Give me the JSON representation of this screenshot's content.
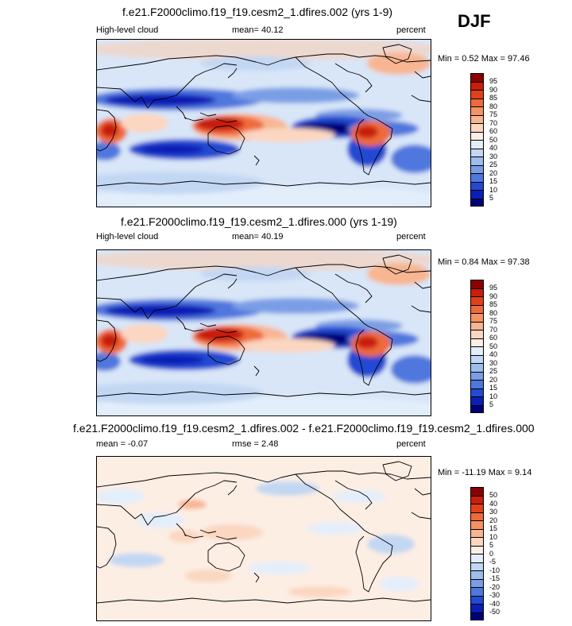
{
  "season": "DJF",
  "panels": [
    {
      "title": "f.e21.F2000climo.f19_f19.cesm2_1.dfires.002 (yrs 1-9)",
      "left_label": "High-level cloud",
      "center_label": "mean=  40.12",
      "right_label": "percent",
      "minmax": "Min =   0.52 Max =  97.46",
      "map_theme": "absolute"
    },
    {
      "title": "f.e21.F2000climo.f19_f19.cesm2_1.dfires.000 (yrs 1-19)",
      "left_label": "High-level cloud",
      "center_label": "mean=  40.19",
      "right_label": "percent",
      "minmax": "Min =   0.84 Max =  97.38",
      "map_theme": "absolute"
    },
    {
      "title": "f.e21.F2000climo.f19_f19.cesm2_1.dfires.002 - f.e21.F2000climo.f19_f19.cesm2_1.dfires.000",
      "left_label": "mean = -0.07",
      "center_label": "rmse =   2.48",
      "right_label": "percent",
      "minmax": "Min = -11.19 Max =   9.14",
      "map_theme": "difference"
    }
  ],
  "colorbars": {
    "absolute": {
      "labels": [
        "95",
        "90",
        "85",
        "80",
        "75",
        "70",
        "60",
        "50",
        "40",
        "30",
        "25",
        "20",
        "15",
        "10",
        "5"
      ],
      "colors": [
        "#8b0000",
        "#c81e0a",
        "#e0411c",
        "#ef6a3a",
        "#f59263",
        "#f8b591",
        "#fbd6c0",
        "#fdeee4",
        "#e3eefb",
        "#c2d7f3",
        "#9fbcec",
        "#7a9ee5",
        "#4f77de",
        "#2449d2",
        "#0a1fb5",
        "#00007a"
      ]
    },
    "difference": {
      "labels": [
        "50",
        "40",
        "30",
        "20",
        "15",
        "10",
        "5",
        "0",
        "-5",
        "-10",
        "-15",
        "-20",
        "-30",
        "-40",
        "-50"
      ],
      "colors": [
        "#8b0000",
        "#c81e0a",
        "#e0411c",
        "#ef6a3a",
        "#f59263",
        "#f8b591",
        "#fbd6c0",
        "#fdeee4",
        "#e3eefb",
        "#c2d7f3",
        "#9fbcec",
        "#7a9ee5",
        "#4f77de",
        "#2449d2",
        "#0a1fb5",
        "#00007a"
      ]
    }
  }
}
